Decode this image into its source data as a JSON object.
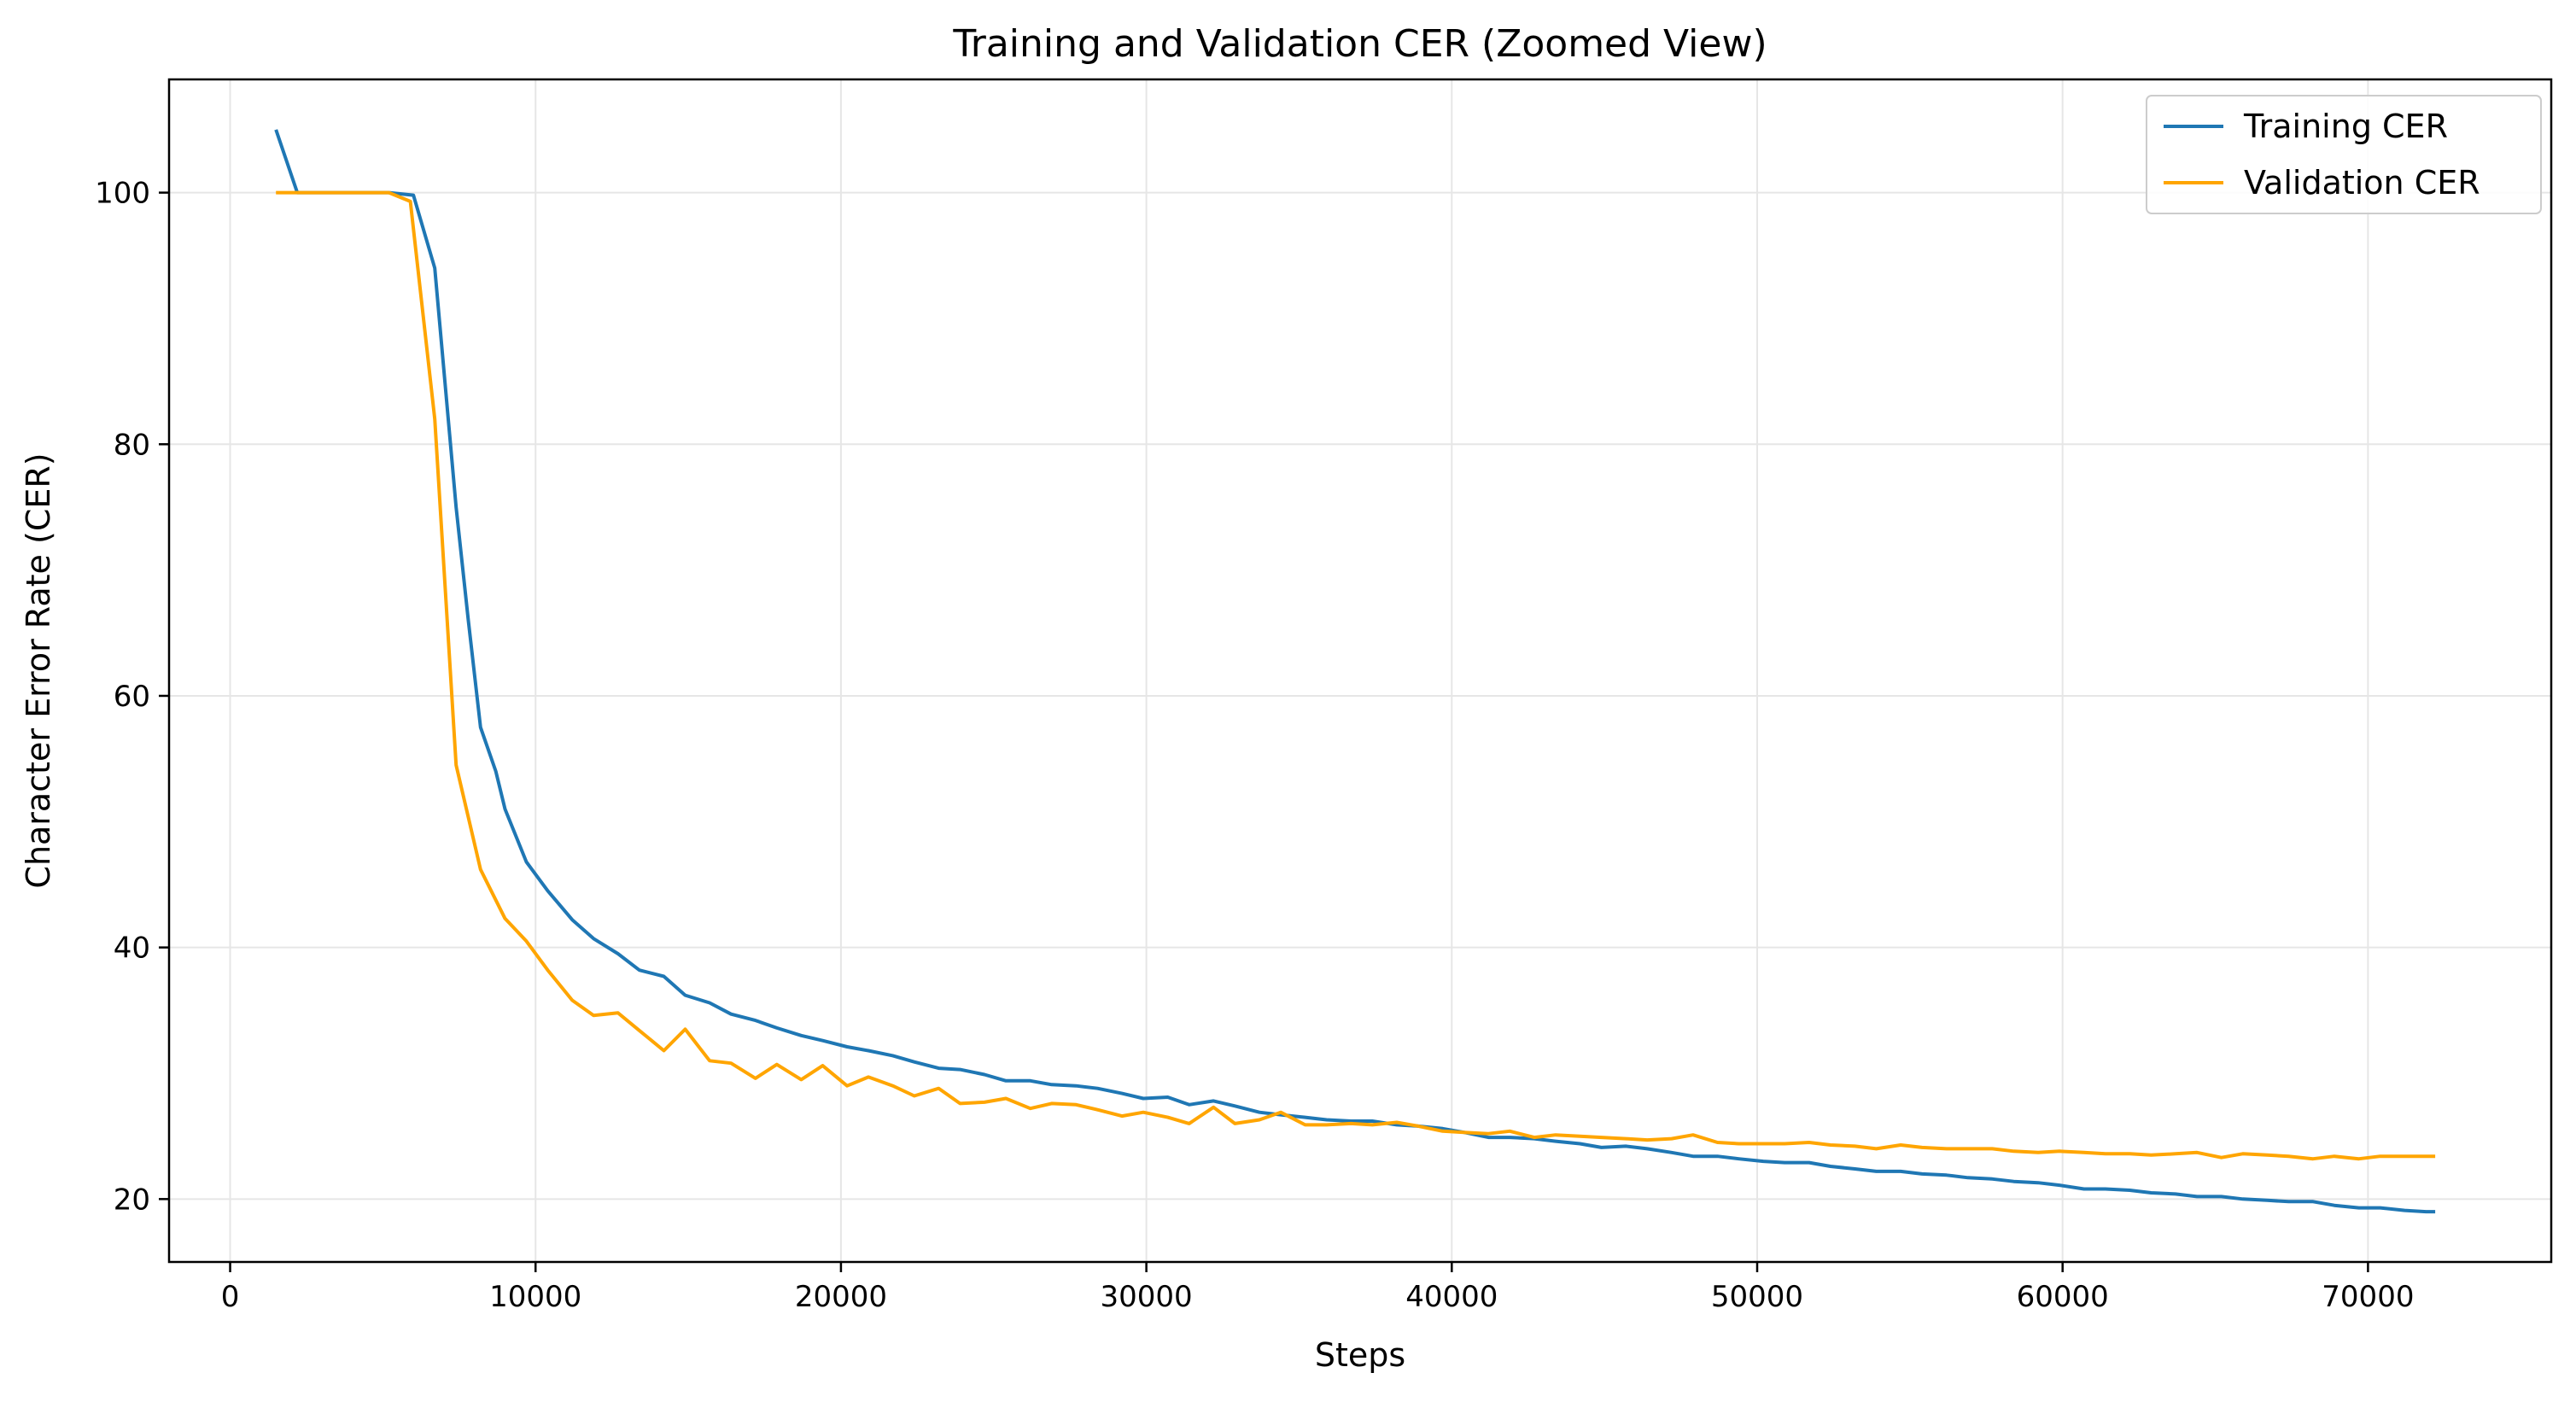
{
  "chart_data": {
    "type": "line",
    "title": "Training and Validation CER (Zoomed View)",
    "xlabel": "Steps",
    "ylabel": "Character Error Rate (CER)",
    "xlim": [
      -2000,
      76000
    ],
    "ylim": [
      15,
      109
    ],
    "xticks": [
      0,
      10000,
      20000,
      30000,
      40000,
      50000,
      60000,
      70000
    ],
    "xtick_labels": [
      "0",
      "10000",
      "20000",
      "30000",
      "40000",
      "50000",
      "60000",
      "70000"
    ],
    "yticks": [
      20,
      40,
      60,
      80,
      100
    ],
    "ytick_labels": [
      "20",
      "40",
      "60",
      "80",
      "100"
    ],
    "grid": true,
    "legend_position": "top-right",
    "series": [
      {
        "name": "Training CER",
        "color": "#1f77b4",
        "points": [
          [
            1500,
            105
          ],
          [
            2200,
            100
          ],
          [
            5200,
            100
          ],
          [
            6000,
            99.8
          ],
          [
            6700,
            94
          ],
          [
            7400,
            75
          ],
          [
            7800,
            66
          ],
          [
            8200,
            57.5
          ],
          [
            8700,
            54
          ],
          [
            9000,
            51
          ],
          [
            9700,
            46.8
          ],
          [
            10400,
            44.5
          ],
          [
            11200,
            42.2
          ],
          [
            11900,
            40.7
          ],
          [
            12700,
            39.5
          ],
          [
            13400,
            38.2
          ],
          [
            14200,
            37.7
          ],
          [
            14900,
            36.2
          ],
          [
            15700,
            35.6
          ],
          [
            16400,
            34.7
          ],
          [
            17200,
            34.2
          ],
          [
            17900,
            33.6
          ],
          [
            18700,
            33.0
          ],
          [
            19400,
            32.6
          ],
          [
            20200,
            32.1
          ],
          [
            20900,
            31.8
          ],
          [
            21700,
            31.4
          ],
          [
            22400,
            30.9
          ],
          [
            23200,
            30.4
          ],
          [
            23900,
            30.3
          ],
          [
            24700,
            29.9
          ],
          [
            25400,
            29.4
          ],
          [
            26200,
            29.4
          ],
          [
            26900,
            29.1
          ],
          [
            27700,
            29.0
          ],
          [
            28400,
            28.8
          ],
          [
            29200,
            28.4
          ],
          [
            29900,
            28.0
          ],
          [
            30700,
            28.1
          ],
          [
            31400,
            27.5
          ],
          [
            32200,
            27.8
          ],
          [
            32900,
            27.4
          ],
          [
            33700,
            26.9
          ],
          [
            34400,
            26.7
          ],
          [
            35200,
            26.5
          ],
          [
            35900,
            26.3
          ],
          [
            36700,
            26.2
          ],
          [
            37400,
            26.2
          ],
          [
            38200,
            25.9
          ],
          [
            38900,
            25.8
          ],
          [
            39700,
            25.6
          ],
          [
            40400,
            25.3
          ],
          [
            41200,
            24.9
          ],
          [
            41900,
            24.9
          ],
          [
            42700,
            24.8
          ],
          [
            43400,
            24.6
          ],
          [
            44200,
            24.4
          ],
          [
            44900,
            24.1
          ],
          [
            45700,
            24.2
          ],
          [
            46400,
            24.0
          ],
          [
            47200,
            23.7
          ],
          [
            47900,
            23.4
          ],
          [
            48700,
            23.4
          ],
          [
            49400,
            23.2
          ],
          [
            50200,
            23.0
          ],
          [
            50900,
            22.9
          ],
          [
            51700,
            22.9
          ],
          [
            52400,
            22.6
          ],
          [
            53200,
            22.4
          ],
          [
            53900,
            22.2
          ],
          [
            54700,
            22.2
          ],
          [
            55400,
            22.0
          ],
          [
            56200,
            21.9
          ],
          [
            56900,
            21.7
          ],
          [
            57700,
            21.6
          ],
          [
            58400,
            21.4
          ],
          [
            59200,
            21.3
          ],
          [
            59900,
            21.1
          ],
          [
            60700,
            20.8
          ],
          [
            61400,
            20.8
          ],
          [
            62200,
            20.7
          ],
          [
            62900,
            20.5
          ],
          [
            63700,
            20.4
          ],
          [
            64400,
            20.2
          ],
          [
            65200,
            20.2
          ],
          [
            65900,
            20.0
          ],
          [
            66700,
            19.9
          ],
          [
            67400,
            19.8
          ],
          [
            68200,
            19.8
          ],
          [
            68900,
            19.5
          ],
          [
            69700,
            19.3
          ],
          [
            70400,
            19.3
          ],
          [
            71200,
            19.1
          ],
          [
            71900,
            19.0
          ],
          [
            72200,
            19.0
          ]
        ]
      },
      {
        "name": "Validation CER",
        "color": "#ffa500",
        "points": [
          [
            1500,
            100
          ],
          [
            5200,
            100
          ],
          [
            5900,
            99.3
          ],
          [
            6700,
            82
          ],
          [
            7400,
            54.5
          ],
          [
            8200,
            46.2
          ],
          [
            9000,
            42.3
          ],
          [
            9700,
            40.5
          ],
          [
            10400,
            38.2
          ],
          [
            11200,
            35.8
          ],
          [
            11900,
            34.6
          ],
          [
            12700,
            34.8
          ],
          [
            13400,
            33.4
          ],
          [
            14200,
            31.8
          ],
          [
            14900,
            33.5
          ],
          [
            15700,
            31.0
          ],
          [
            16400,
            30.8
          ],
          [
            17200,
            29.6
          ],
          [
            17900,
            30.7
          ],
          [
            18700,
            29.5
          ],
          [
            19400,
            30.6
          ],
          [
            20200,
            29.0
          ],
          [
            20900,
            29.7
          ],
          [
            21700,
            29.0
          ],
          [
            22400,
            28.2
          ],
          [
            23200,
            28.8
          ],
          [
            23900,
            27.6
          ],
          [
            24700,
            27.7
          ],
          [
            25400,
            28.0
          ],
          [
            26200,
            27.2
          ],
          [
            26900,
            27.6
          ],
          [
            27700,
            27.5
          ],
          [
            28400,
            27.1
          ],
          [
            29200,
            26.6
          ],
          [
            29900,
            26.9
          ],
          [
            30700,
            26.5
          ],
          [
            31400,
            26.0
          ],
          [
            32200,
            27.3
          ],
          [
            32900,
            26.0
          ],
          [
            33700,
            26.3
          ],
          [
            34400,
            26.9
          ],
          [
            35200,
            25.9
          ],
          [
            35900,
            25.9
          ],
          [
            36700,
            26.0
          ],
          [
            37400,
            25.9
          ],
          [
            38200,
            26.1
          ],
          [
            38900,
            25.8
          ],
          [
            39700,
            25.4
          ],
          [
            40400,
            25.3
          ],
          [
            41200,
            25.2
          ],
          [
            41900,
            25.4
          ],
          [
            42700,
            24.9
          ],
          [
            43400,
            25.1
          ],
          [
            44200,
            25.0
          ],
          [
            44900,
            24.9
          ],
          [
            45700,
            24.8
          ],
          [
            46400,
            24.7
          ],
          [
            47200,
            24.8
          ],
          [
            47900,
            25.1
          ],
          [
            48700,
            24.5
          ],
          [
            49400,
            24.4
          ],
          [
            50200,
            24.4
          ],
          [
            50900,
            24.4
          ],
          [
            51700,
            24.5
          ],
          [
            52400,
            24.3
          ],
          [
            53200,
            24.2
          ],
          [
            53900,
            24.0
          ],
          [
            54700,
            24.3
          ],
          [
            55400,
            24.1
          ],
          [
            56200,
            24.0
          ],
          [
            56900,
            24.0
          ],
          [
            57700,
            24.0
          ],
          [
            58400,
            23.8
          ],
          [
            59200,
            23.7
          ],
          [
            59900,
            23.8
          ],
          [
            60700,
            23.7
          ],
          [
            61400,
            23.6
          ],
          [
            62200,
            23.6
          ],
          [
            62900,
            23.5
          ],
          [
            63700,
            23.6
          ],
          [
            64400,
            23.7
          ],
          [
            65200,
            23.3
          ],
          [
            65900,
            23.6
          ],
          [
            66700,
            23.5
          ],
          [
            67400,
            23.4
          ],
          [
            68200,
            23.2
          ],
          [
            68900,
            23.4
          ],
          [
            69700,
            23.2
          ],
          [
            70400,
            23.4
          ],
          [
            71200,
            23.4
          ],
          [
            71900,
            23.4
          ],
          [
            72200,
            23.4
          ]
        ]
      }
    ]
  }
}
